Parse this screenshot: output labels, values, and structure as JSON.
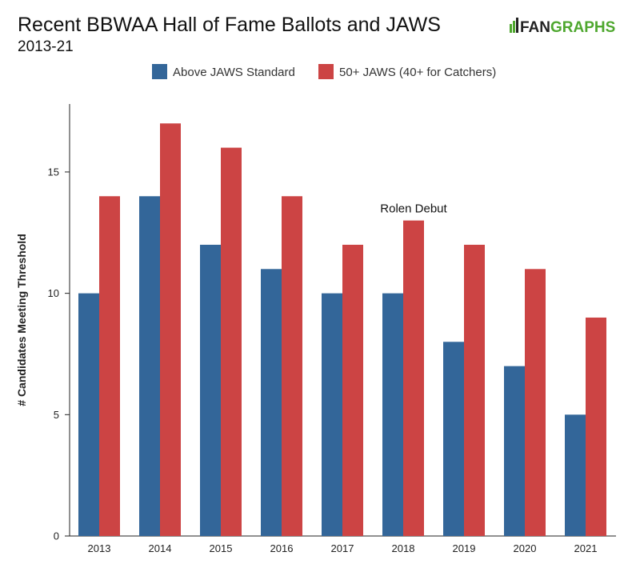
{
  "header": {
    "title": "Recent BBWAA Hall of Fame Ballots and JAWS",
    "subtitle": "2013-21"
  },
  "logo": {
    "brand_a": "FAN",
    "brand_b": "GRAPHS",
    "icon": "batter-icon",
    "colors": {
      "dark": "#222222",
      "green": "#4ea72e"
    }
  },
  "chart_data": {
    "type": "bar",
    "title": "Recent BBWAA Hall of Fame Ballots and JAWS",
    "subtitle": "2013-21",
    "xlabel": "",
    "ylabel": "# Candidates Meeting Threshold",
    "categories": [
      "2013",
      "2014",
      "2015",
      "2016",
      "2017",
      "2018",
      "2019",
      "2020",
      "2021"
    ],
    "series": [
      {
        "name": "Above JAWS Standard",
        "color": "#336699",
        "values": [
          10,
          14,
          12,
          11,
          10,
          10,
          8,
          7,
          5
        ]
      },
      {
        "name": "50+ JAWS (40+ for Catchers)",
        "color": "#cc4444",
        "values": [
          14,
          17,
          16,
          14,
          12,
          13,
          12,
          11,
          9
        ]
      }
    ],
    "ylim": [
      0,
      17.8
    ],
    "yticks": [
      0,
      5,
      10,
      15
    ],
    "grid": false,
    "legend": "top-center",
    "annotations": [
      {
        "text": "Rolen Debut",
        "category": "2018",
        "series": 1
      }
    ]
  }
}
